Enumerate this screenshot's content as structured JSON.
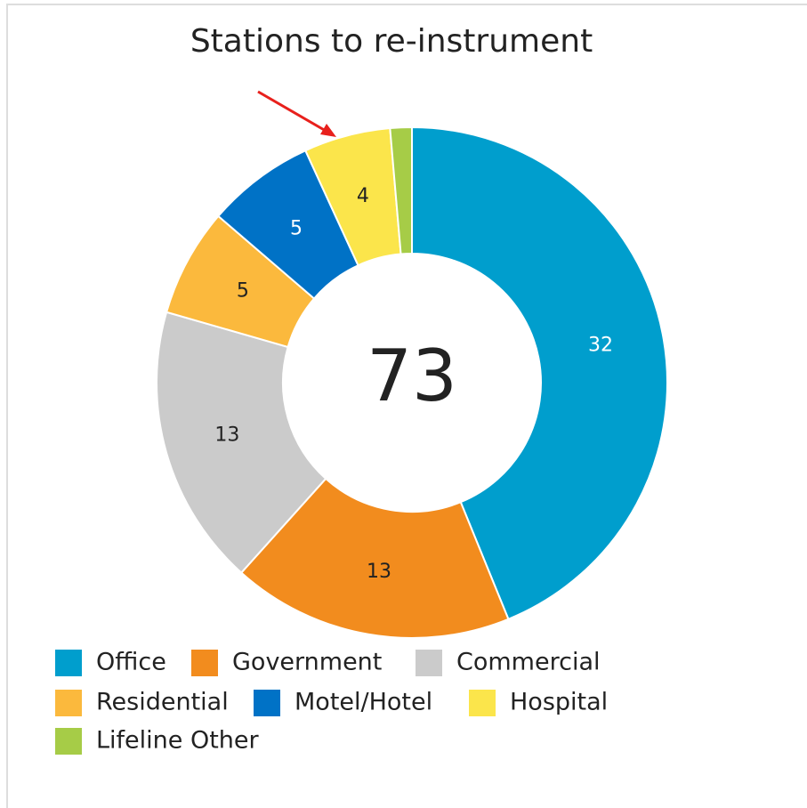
{
  "chart_data": {
    "type": "donut",
    "title": "Stations to re-instrument",
    "total": 73,
    "categories": [
      "Office",
      "Government",
      "Commercial",
      "Residential",
      "Motel/Hotel",
      "Hospital",
      "Lifeline Other"
    ],
    "values": [
      32,
      13,
      13,
      5,
      5,
      4,
      1
    ],
    "colors": [
      "#009ECD",
      "#F28C1E",
      "#CBCBCB",
      "#FBB93D",
      "#0072C6",
      "#FBE54B",
      "#A6CC47"
    ],
    "legend": "bottom"
  }
}
